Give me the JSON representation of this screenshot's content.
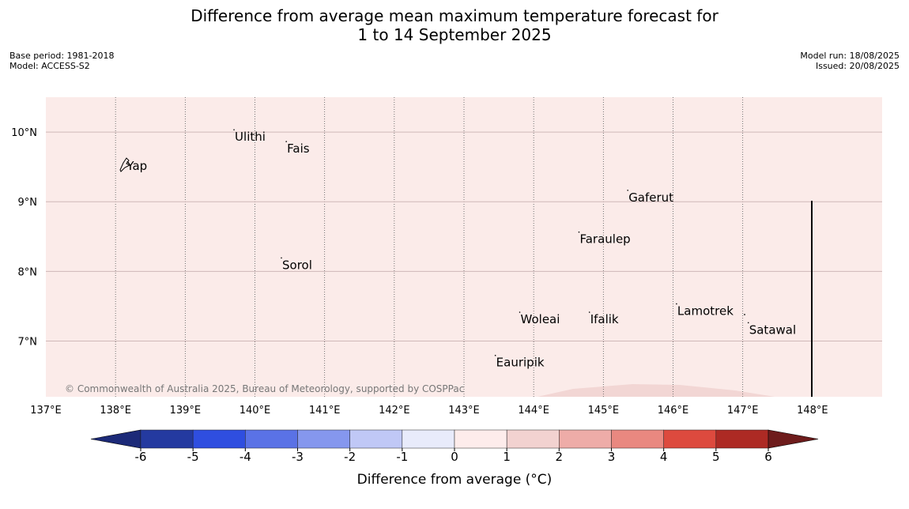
{
  "title": {
    "line1": "Difference from average mean maximum temperature forecast for",
    "line2": "1 to 14 September 2025"
  },
  "meta_left": {
    "base_period": "Base period: 1981-2018",
    "model": "Model: ACCESS-S2"
  },
  "meta_right": {
    "model_run": "Model run: 18/08/2025",
    "issued": "Issued: 20/08/2025"
  },
  "map": {
    "lon_range": [
      137,
      149
    ],
    "lat_range": [
      6.2,
      10.5
    ],
    "background_color": "#fbebe9",
    "warm_patch_color": "#f2d6d4",
    "lon_ticks": [
      "137°E",
      "138°E",
      "139°E",
      "140°E",
      "141°E",
      "142°E",
      "143°E",
      "144°E",
      "145°E",
      "146°E",
      "147°E",
      "148°E"
    ],
    "lat_ticks": [
      "10°N",
      "9°N",
      "8°N",
      "7°N"
    ],
    "places": [
      {
        "name": "Yap",
        "lon": 138.15,
        "lat": 9.5
      },
      {
        "name": "Ulithi",
        "lon": 139.7,
        "lat": 9.92
      },
      {
        "name": "Fais",
        "lon": 140.45,
        "lat": 9.75
      },
      {
        "name": "Gaferut",
        "lon": 145.35,
        "lat": 9.05
      },
      {
        "name": "Faraulep",
        "lon": 144.65,
        "lat": 8.45
      },
      {
        "name": "Sorol",
        "lon": 140.38,
        "lat": 8.08
      },
      {
        "name": "Lamotrek",
        "lon": 146.05,
        "lat": 7.42
      },
      {
        "name": "Woleai",
        "lon": 143.8,
        "lat": 7.3
      },
      {
        "name": "Ifalik",
        "lon": 144.8,
        "lat": 7.3
      },
      {
        "name": "Satawal",
        "lon": 147.08,
        "lat": 7.15
      },
      {
        "name": "Eauripik",
        "lon": 143.45,
        "lat": 6.68
      }
    ],
    "copyright": "© Commonwealth of Australia 2025, Bureau of Meteorology, supported by COSPPac"
  },
  "colorbar": {
    "label": "Difference from average (°C)",
    "ticks": [
      "-6",
      "-5",
      "-4",
      "-3",
      "-2",
      "-1",
      "0",
      "1",
      "2",
      "3",
      "4",
      "5",
      "6"
    ],
    "colors": [
      "#243aa0",
      "#2f4ee0",
      "#5a72e6",
      "#8597ee",
      "#c0c8f6",
      "#e8ebfb",
      "#fdeceb",
      "#f2d2d0",
      "#eeaca8",
      "#e98880",
      "#dd4a3e",
      "#ad2a24"
    ],
    "under_color": "#1c2a78",
    "over_color": "#6e1c1c"
  }
}
